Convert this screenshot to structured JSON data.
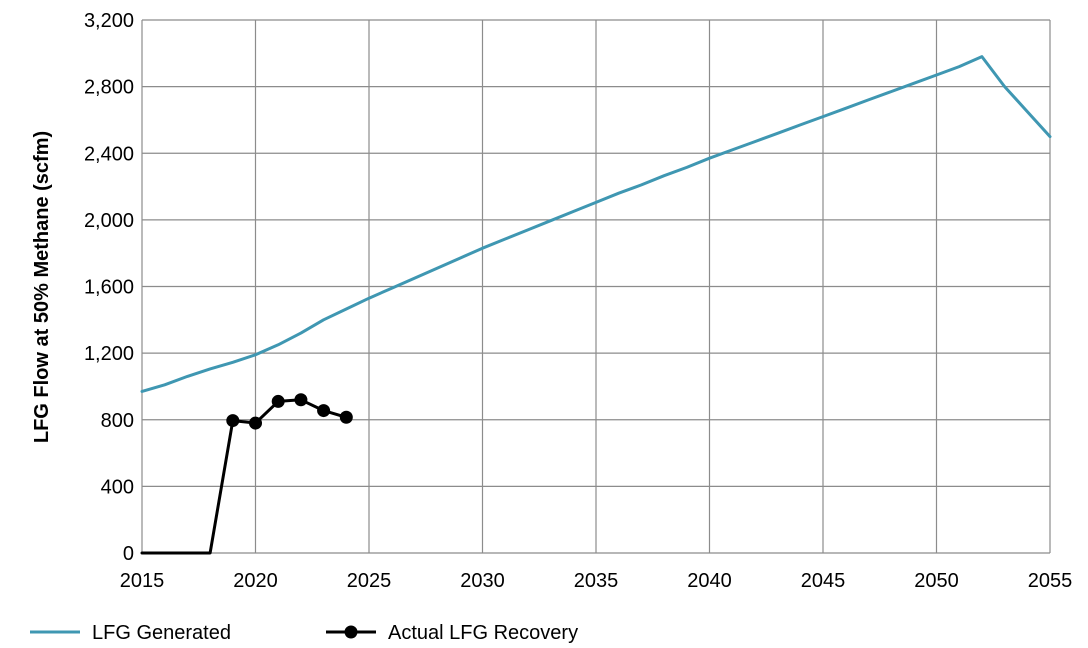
{
  "chart_data": {
    "type": "line",
    "title": "",
    "xlabel": "",
    "ylabel": "LFG Flow at 50% Methane (scfm)",
    "xlim": [
      2015,
      2055
    ],
    "ylim": [
      0,
      3200
    ],
    "x_ticks": [
      "2015",
      "2020",
      "2025",
      "2030",
      "2035",
      "2040",
      "2045",
      "2050",
      "2055"
    ],
    "y_ticks": [
      "0",
      "400",
      "800",
      "1,200",
      "1,600",
      "2,000",
      "2,400",
      "2,800",
      "3,200"
    ],
    "grid": true,
    "legend_position": "bottom",
    "series": [
      {
        "name": "LFG Generated",
        "color": "#3f97b2",
        "marker": "none",
        "x": [
          2015,
          2016,
          2017,
          2018,
          2019,
          2020,
          2021,
          2022,
          2023,
          2024,
          2025,
          2026,
          2027,
          2028,
          2029,
          2030,
          2031,
          2032,
          2033,
          2034,
          2035,
          2036,
          2037,
          2038,
          2039,
          2040,
          2041,
          2042,
          2043,
          2044,
          2045,
          2046,
          2047,
          2048,
          2049,
          2050,
          2051,
          2052,
          2053,
          2054,
          2055
        ],
        "values": [
          970,
          1010,
          1060,
          1105,
          1145,
          1190,
          1250,
          1320,
          1400,
          1465,
          1530,
          1590,
          1650,
          1710,
          1770,
          1830,
          1885,
          1940,
          1995,
          2050,
          2105,
          2160,
          2210,
          2265,
          2315,
          2370,
          2420,
          2470,
          2520,
          2570,
          2620,
          2670,
          2720,
          2770,
          2820,
          2870,
          2920,
          2980,
          2800,
          2650,
          2500
        ]
      },
      {
        "name": "Actual LFG Recovery",
        "color": "#000000",
        "marker": "circle",
        "x": [
          2015,
          2016,
          2017,
          2018,
          2019,
          2020,
          2021,
          2022,
          2023,
          2024
        ],
        "values": [
          0,
          0,
          0,
          0,
          795,
          780,
          910,
          920,
          855,
          815
        ],
        "marker_x": [
          2019,
          2020,
          2021,
          2022,
          2023,
          2024
        ],
        "marker_values": [
          795,
          780,
          910,
          920,
          855,
          815
        ]
      }
    ]
  }
}
